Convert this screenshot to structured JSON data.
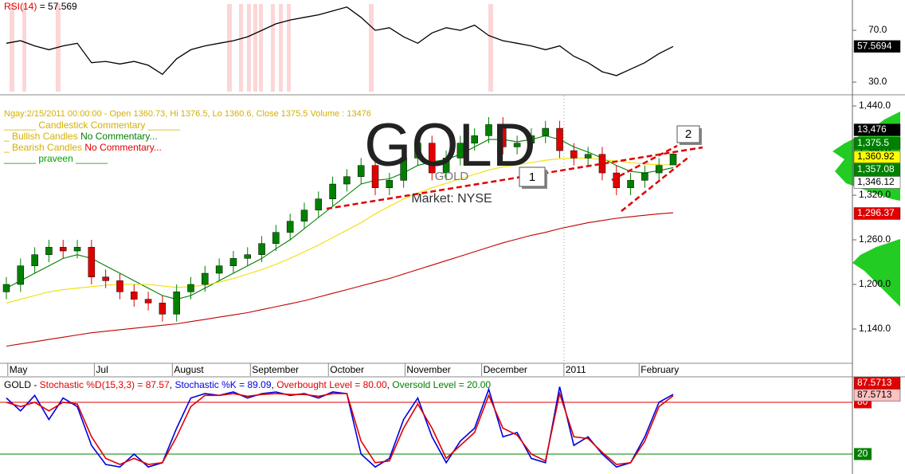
{
  "chart_data": [
    {
      "type": "line",
      "title": "RSI(14)",
      "subtitle": "= 57.569",
      "values": [
        60,
        62,
        58,
        55,
        58,
        60,
        45,
        46,
        44,
        46,
        43,
        36,
        48,
        55,
        58,
        60,
        62,
        65,
        70,
        75,
        78,
        80,
        82,
        85,
        88,
        80,
        70,
        72,
        65,
        60,
        68,
        72,
        70,
        74,
        66,
        62,
        60,
        58,
        55,
        58,
        50,
        45,
        38,
        35,
        40,
        45,
        52,
        57.569
      ],
      "color": "#000000",
      "ylim": [
        20.8,
        92.2
      ],
      "yticks": [
        {
          "value": 70,
          "label": "70.0"
        },
        {
          "value": 30,
          "label": "30.0"
        }
      ],
      "flags": [
        {
          "value": 57.5694,
          "label": "57.5694",
          "color": "#000000",
          "text_color": "#ffffff"
        }
      ]
    },
    {
      "type": "candlestick",
      "title": "Ngay:2/15/2011 00:00:00 - Open 1360.73, Hi 1376.5, Lo 1360.6, Close 1375.5 Volume : 13476",
      "legend": [
        [
          {
            "text": "______ Candlestick Commentary ______",
            "color": "#d4b000"
          }
        ],
        [
          {
            "text": "_ Bullish Candles ",
            "color": "#d4b000"
          },
          {
            "text": "No Commentary...",
            "color": "#008000"
          }
        ],
        [
          {
            "text": "_ Bearish Candles ",
            "color": "#d4b000"
          },
          {
            "text": "No Commentary...",
            "color": "#e00000"
          }
        ],
        [
          {
            "text": "______ praveen ______",
            "color": "#00a000"
          }
        ]
      ],
      "watermark": "GOLD",
      "symbol": "GOLD",
      "market": "Market: NYSE",
      "annotations": [
        "1",
        "2"
      ],
      "open": [
        1190,
        1200,
        1225,
        1240,
        1250,
        1245,
        1250,
        1210,
        1205,
        1190,
        1180,
        1175,
        1160,
        1190,
        1200,
        1215,
        1225,
        1235,
        1240,
        1255,
        1270,
        1285,
        1300,
        1315,
        1335,
        1345,
        1360,
        1330,
        1340,
        1370,
        1390,
        1350,
        1370,
        1390,
        1400,
        1415,
        1385,
        1390,
        1400,
        1410,
        1380,
        1370,
        1375,
        1350,
        1330,
        1340,
        1350,
        1360.73
      ],
      "high": [
        1210,
        1235,
        1250,
        1260,
        1260,
        1260,
        1260,
        1220,
        1215,
        1200,
        1190,
        1185,
        1200,
        1210,
        1225,
        1235,
        1245,
        1250,
        1265,
        1280,
        1295,
        1310,
        1325,
        1345,
        1355,
        1370,
        1370,
        1350,
        1380,
        1400,
        1400,
        1380,
        1400,
        1410,
        1425,
        1425,
        1400,
        1410,
        1420,
        1420,
        1390,
        1385,
        1385,
        1360,
        1350,
        1360,
        1370,
        1376.5
      ],
      "low": [
        1180,
        1190,
        1215,
        1230,
        1235,
        1235,
        1200,
        1195,
        1180,
        1170,
        1165,
        1150,
        1150,
        1180,
        1190,
        1205,
        1215,
        1225,
        1230,
        1245,
        1260,
        1275,
        1290,
        1305,
        1325,
        1335,
        1320,
        1320,
        1330,
        1360,
        1340,
        1340,
        1360,
        1380,
        1390,
        1375,
        1375,
        1380,
        1390,
        1370,
        1360,
        1360,
        1340,
        1320,
        1320,
        1330,
        1340,
        1360.6
      ],
      "close": [
        1200,
        1225,
        1240,
        1250,
        1245,
        1250,
        1210,
        1205,
        1190,
        1180,
        1175,
        1160,
        1190,
        1200,
        1215,
        1225,
        1235,
        1240,
        1255,
        1270,
        1285,
        1300,
        1315,
        1335,
        1345,
        1360,
        1330,
        1340,
        1370,
        1390,
        1350,
        1370,
        1390,
        1400,
        1415,
        1385,
        1390,
        1400,
        1410,
        1380,
        1370,
        1375,
        1350,
        1330,
        1340,
        1350,
        1360,
        1375.5
      ],
      "up_color": "#008000",
      "down_color": "#e00000",
      "series": [
        {
          "color": "#008000",
          "values": [
            1195,
            1205,
            1215,
            1225,
            1235,
            1240,
            1235,
            1225,
            1215,
            1205,
            1195,
            1185,
            1180,
            1185,
            1195,
            1205,
            1215,
            1225,
            1235,
            1248,
            1260,
            1275,
            1290,
            1305,
            1320,
            1335,
            1340,
            1342,
            1350,
            1360,
            1365,
            1368,
            1375,
            1385,
            1395,
            1395,
            1392,
            1395,
            1400,
            1395,
            1385,
            1378,
            1370,
            1360,
            1352,
            1350,
            1353,
            1357.08
          ]
        },
        {
          "color": "#f0e000",
          "values": [
            1175,
            1180,
            1185,
            1190,
            1193,
            1195,
            1197,
            1199,
            1200,
            1200,
            1200,
            1198,
            1196,
            1197,
            1199,
            1203,
            1208,
            1214,
            1220,
            1227,
            1235,
            1244,
            1253,
            1263,
            1273,
            1283,
            1295,
            1305,
            1315,
            1323,
            1330,
            1336,
            1342,
            1348,
            1354,
            1358,
            1361,
            1364,
            1367,
            1369,
            1370,
            1370,
            1368,
            1366,
            1364,
            1362,
            1361,
            1360.92
          ]
        },
        {
          "color": "#c00000",
          "values": [
            1117,
            1120,
            1123,
            1126,
            1129,
            1132,
            1135,
            1137,
            1139,
            1141,
            1143,
            1145,
            1147,
            1150,
            1153,
            1156,
            1159,
            1162,
            1166,
            1170,
            1174,
            1178,
            1183,
            1188,
            1193,
            1198,
            1203,
            1208,
            1214,
            1220,
            1226,
            1232,
            1238,
            1244,
            1250,
            1256,
            1261,
            1266,
            1270,
            1275,
            1279,
            1283,
            1286,
            1289,
            1291,
            1293,
            1295,
            1296.37
          ]
        }
      ],
      "ylim": [
        1095,
        1454
      ],
      "yticks": [
        {
          "value": 1140,
          "label": "1,140.0"
        },
        {
          "value": 1200,
          "label": "1,200.0"
        },
        {
          "value": 1260,
          "label": "1,260.0"
        },
        {
          "value": 1320,
          "label": "1,320.0"
        },
        {
          "value": 1380,
          "label": "1,380.0"
        },
        {
          "value": 1440,
          "label": "1,440.0"
        }
      ],
      "xticks": [
        {
          "value": 0.1,
          "label": "May"
        },
        {
          "value": 6.2,
          "label": "Jul"
        },
        {
          "value": 11.7,
          "label": "August"
        },
        {
          "value": 17.2,
          "label": "September"
        },
        {
          "value": 22.7,
          "label": "October"
        },
        {
          "value": 28.1,
          "label": "November"
        },
        {
          "value": 33.5,
          "label": "December"
        },
        {
          "value": 39.3,
          "label": "2011"
        },
        {
          "value": 44.6,
          "label": "February"
        }
      ],
      "flags": [
        {
          "value": 13476,
          "label": "13,476",
          "color": "#000000",
          "text_color": "#ffffff"
        },
        {
          "value": 1375.5,
          "label": "1,375.5",
          "color": "#008000",
          "text_color": "#ffffff"
        },
        {
          "value": 1360.92,
          "label": "1,360.92",
          "color": "#ffff00",
          "text_color": "#000000"
        },
        {
          "value": 1357.08,
          "label": "1,357.08",
          "color": "#008000",
          "text_color": "#ffffff"
        },
        {
          "value": 1346.12,
          "label": "1,346.12",
          "color": "#ffffff",
          "text_color": "#000000"
        },
        {
          "value": 1296.37,
          "label": "1,296.37",
          "color": "#e00000",
          "text_color": "#ffffff"
        }
      ]
    },
    {
      "type": "line",
      "title": [
        {
          "text": "GOLD - ",
          "color": "#000000"
        },
        {
          "text": "Stochastic %D(15,3,3) = 87.57",
          "color": "#e00000"
        },
        {
          "text": ", ",
          "color": "#000000"
        },
        {
          "text": "Stochastic %K = 89.09",
          "color": "#0000e0"
        },
        {
          "text": ", ",
          "color": "#000000"
        },
        {
          "text": "Overbought Level = 80.00",
          "color": "#e00000"
        },
        {
          "text": ", ",
          "color": "#000000"
        },
        {
          "text": "Oversold Level = 20.00",
          "color": "#008000"
        }
      ],
      "series": [
        {
          "color": "#0000e0",
          "values": [
            85,
            70,
            88,
            60,
            85,
            75,
            30,
            8,
            5,
            20,
            5,
            10,
            50,
            85,
            90,
            88,
            92,
            85,
            90,
            92,
            88,
            90,
            85,
            92,
            90,
            20,
            5,
            15,
            60,
            85,
            40,
            10,
            35,
            50,
            95,
            40,
            45,
            15,
            10,
            98,
            30,
            40,
            20,
            5,
            10,
            40,
            80,
            89.09
          ]
        },
        {
          "color": "#e00000",
          "values": [
            80,
            75,
            80,
            70,
            80,
            78,
            40,
            15,
            8,
            15,
            8,
            10,
            40,
            75,
            88,
            88,
            90,
            87,
            89,
            90,
            89,
            89,
            87,
            90,
            90,
            35,
            10,
            12,
            50,
            78,
            50,
            15,
            30,
            45,
            88,
            50,
            42,
            20,
            12,
            90,
            40,
            38,
            22,
            8,
            10,
            35,
            75,
            87.57
          ]
        }
      ],
      "ylim": [
        -3.1,
        104.9
      ],
      "levels": [
        {
          "value": 80,
          "color": "#e00000"
        },
        {
          "value": 20,
          "color": "#008000"
        }
      ],
      "flags": [
        {
          "value": 87.5713,
          "label": "87.5713",
          "color": "#e00000",
          "text_color": "#ffffff"
        },
        {
          "value": 87.5713,
          "label": "87.5713",
          "color": "#ffc0c0",
          "text_color": "#000000"
        }
      ]
    }
  ]
}
